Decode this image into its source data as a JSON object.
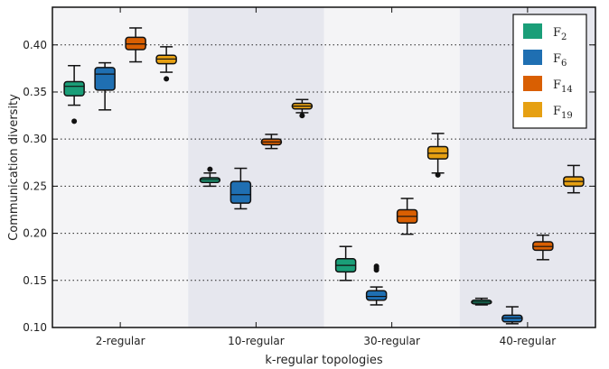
{
  "chart_data": {
    "type": "box",
    "title": "",
    "xlabel": "k-regular topologies",
    "ylabel": "Communication diversity",
    "ylim": [
      0.1,
      0.44
    ],
    "yticks": [
      "0.10",
      "0.15",
      "0.20",
      "0.25",
      "0.30",
      "0.35",
      "0.40"
    ],
    "grid": "horizontal-dotted",
    "legend_position": "top-right",
    "categories": [
      "2-regular",
      "10-regular",
      "30-regular",
      "40-regular"
    ],
    "series": [
      {
        "name": "F",
        "name_sub": "2",
        "color": "#1a9e78",
        "boxes": [
          {
            "min": 0.336,
            "q1": 0.346,
            "median": 0.356,
            "q3": 0.361,
            "max": 0.378,
            "outliers": [
              0.319
            ]
          },
          {
            "min": 0.25,
            "q1": 0.254,
            "median": 0.257,
            "q3": 0.259,
            "max": 0.264,
            "outliers": [
              0.268
            ]
          },
          {
            "min": 0.15,
            "q1": 0.159,
            "median": 0.166,
            "q3": 0.173,
            "max": 0.186,
            "outliers": []
          },
          {
            "min": 0.124,
            "q1": 0.125,
            "median": 0.127,
            "q3": 0.129,
            "max": 0.131,
            "outliers": []
          }
        ]
      },
      {
        "name": "F",
        "name_sub": "6",
        "color": "#1f6fb2",
        "boxes": [
          {
            "min": 0.331,
            "q1": 0.352,
            "median": 0.369,
            "q3": 0.376,
            "max": 0.381,
            "outliers": []
          },
          {
            "min": 0.226,
            "q1": 0.232,
            "median": 0.241,
            "q3": 0.255,
            "max": 0.269,
            "outliers": []
          },
          {
            "min": 0.124,
            "q1": 0.129,
            "median": 0.133,
            "q3": 0.139,
            "max": 0.143,
            "outliers": [
              0.161,
              0.163,
              0.165
            ]
          },
          {
            "min": 0.104,
            "q1": 0.106,
            "median": 0.11,
            "q3": 0.113,
            "max": 0.122,
            "outliers": []
          }
        ]
      },
      {
        "name": "F",
        "name_sub": "14",
        "color": "#d95f02",
        "boxes": [
          {
            "min": 0.382,
            "q1": 0.395,
            "median": 0.401,
            "q3": 0.408,
            "max": 0.418,
            "outliers": []
          },
          {
            "min": 0.29,
            "q1": 0.294,
            "median": 0.297,
            "q3": 0.3,
            "max": 0.305,
            "outliers": []
          },
          {
            "min": 0.199,
            "q1": 0.211,
            "median": 0.218,
            "q3": 0.225,
            "max": 0.237,
            "outliers": []
          },
          {
            "min": 0.172,
            "q1": 0.182,
            "median": 0.186,
            "q3": 0.191,
            "max": 0.198,
            "outliers": []
          }
        ]
      },
      {
        "name": "F",
        "name_sub": "19",
        "color": "#e6a012",
        "boxes": [
          {
            "min": 0.371,
            "q1": 0.38,
            "median": 0.385,
            "q3": 0.389,
            "max": 0.398,
            "outliers": [
              0.364
            ]
          },
          {
            "min": 0.328,
            "q1": 0.332,
            "median": 0.335,
            "q3": 0.338,
            "max": 0.342,
            "outliers": [
              0.325
            ]
          },
          {
            "min": 0.264,
            "q1": 0.279,
            "median": 0.285,
            "q3": 0.292,
            "max": 0.306,
            "outliers": [
              0.262
            ]
          },
          {
            "min": 0.243,
            "q1": 0.25,
            "median": 0.255,
            "q3": 0.26,
            "max": 0.272,
            "outliers": []
          }
        ]
      }
    ]
  }
}
